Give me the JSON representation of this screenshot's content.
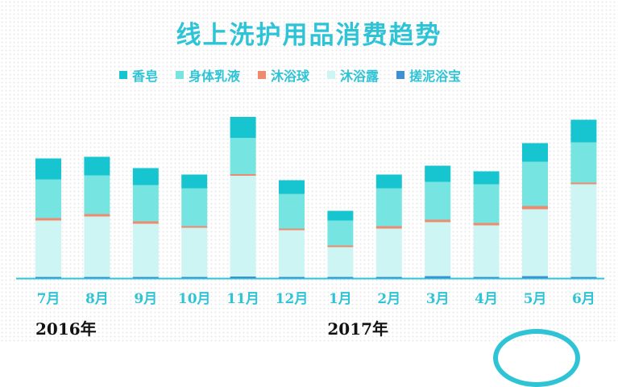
{
  "chart_data": {
    "type": "bar",
    "stacked": true,
    "title": "线上洗护用品消费趋势",
    "categories": [
      "7月",
      "8月",
      "9月",
      "10月",
      "11月",
      "12月",
      "1月",
      "2月",
      "3月",
      "4月",
      "5月",
      "6月"
    ],
    "year_labels": [
      {
        "text": "2016年",
        "category_index": 0
      },
      {
        "text": "2017年",
        "category_index": 6
      }
    ],
    "series": [
      {
        "name": "搓泥浴宝",
        "color": "#3f8fd2",
        "values": [
          1.5,
          1.5,
          1.5,
          1.5,
          2,
          1.5,
          1.5,
          1.5,
          2.5,
          1.5,
          2.5,
          1.5
        ]
      },
      {
        "name": "沐浴露",
        "color": "#cdf5f4",
        "values": [
          70,
          75,
          66,
          61,
          125,
          58,
          37,
          60,
          67,
          64,
          83,
          115
        ]
      },
      {
        "name": "沐浴球",
        "color": "#ee8a6e",
        "values": [
          3,
          3,
          3,
          2,
          2,
          2,
          2,
          3,
          3,
          3,
          4,
          2
        ]
      },
      {
        "name": "身体乳液",
        "color": "#76e4e0",
        "values": [
          48,
          48,
          45,
          47,
          45,
          43,
          31,
          47,
          47,
          48,
          55,
          50
        ]
      },
      {
        "name": "香皂",
        "color": "#16c5cf",
        "values": [
          26,
          23,
          21,
          17,
          26,
          17,
          12,
          17,
          20,
          16,
          23,
          28
        ]
      }
    ],
    "legend_order": [
      "香皂",
      "身体乳液",
      "沐浴球",
      "沐浴露",
      "搓泥浴宝"
    ],
    "legend_position": "top",
    "ylim": [
      0,
      205
    ],
    "grid": false
  }
}
